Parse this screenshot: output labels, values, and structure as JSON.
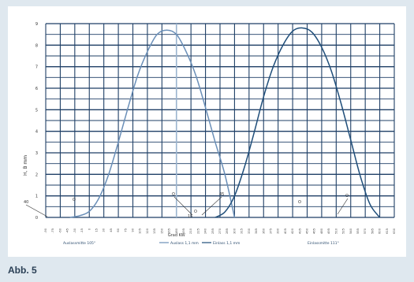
{
  "caption": "Abb. 5",
  "chart_data": {
    "type": "line",
    "ylabel": "H, B mm",
    "xlabel": "Grad KW",
    "ylim": [
      0,
      9
    ],
    "yticks": [
      "0",
      "1",
      "2",
      "3",
      "4",
      "5",
      "6",
      "7",
      "8",
      "9"
    ],
    "x_tick_labels": [
      "-90",
      "-75",
      "-60",
      "-45",
      "-30",
      "-15",
      "0",
      "15",
      "30",
      "45",
      "60",
      "75",
      "90",
      "105",
      "120",
      "135",
      "150",
      "165",
      "180",
      "195",
      "210",
      "225",
      "240",
      "255",
      "270",
      "285",
      "300",
      "315",
      "330",
      "345",
      "360",
      "375",
      "390",
      "405",
      "420",
      "435",
      "450",
      "465",
      "480",
      "495",
      "510",
      "525",
      "540",
      "555",
      "570",
      "585",
      "600",
      "615",
      "630"
    ],
    "xlim": [
      -90,
      630
    ],
    "grid": true,
    "series": [
      {
        "name": "Auslass 1,1 mm",
        "color": "#6a8fb8",
        "x": [
          -40,
          -20,
          0,
          20,
          40,
          60,
          80,
          100,
          120,
          140,
          160,
          180,
          200,
          220,
          240,
          260,
          280,
          300
        ],
        "y": [
          0,
          0.08,
          0.28,
          0.9,
          2.0,
          3.5,
          5.1,
          6.6,
          7.7,
          8.5,
          8.7,
          8.5,
          7.7,
          6.6,
          5.1,
          3.5,
          2.0,
          0
        ]
      },
      {
        "name": "Einlass 1,1 mm",
        "color": "#1f4e7a",
        "x": [
          260,
          280,
          300,
          320,
          340,
          360,
          380,
          400,
          420,
          440,
          460,
          480,
          500,
          520,
          540,
          560,
          580,
          600
        ],
        "y": [
          0,
          0.25,
          1.0,
          2.3,
          3.9,
          5.6,
          7.0,
          8.0,
          8.65,
          8.8,
          8.6,
          7.9,
          6.8,
          5.3,
          3.6,
          1.9,
          0.6,
          0
        ]
      }
    ],
    "annotations": [
      "40",
      "O",
      "O",
      "45",
      "15",
      "O",
      "O",
      "O"
    ],
    "bottom_labels": [
      "Auslassmitte 105°",
      "Einlassmitte 111°"
    ],
    "legend_labels": [
      "Auslass 1,1 mm",
      "Einlass 1,1 mm"
    ]
  }
}
